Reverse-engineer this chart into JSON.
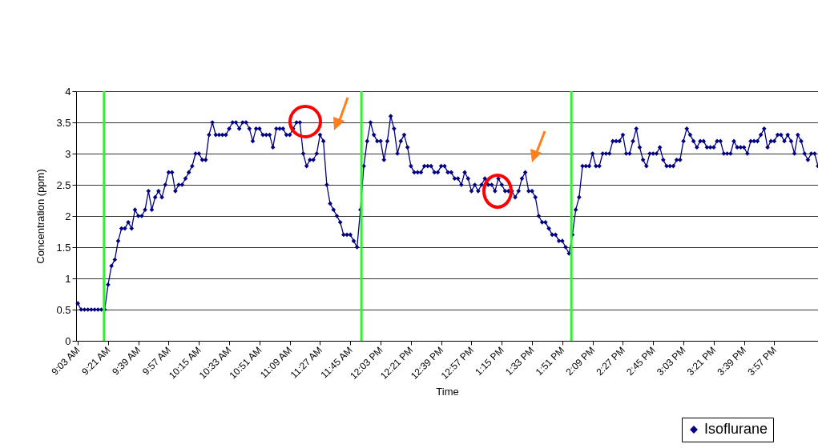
{
  "chart_data": {
    "type": "line",
    "xlabel": "Time",
    "ylabel": "Concentration (ppm)",
    "x": [
      9.05,
      9.0833,
      9.1167,
      9.15,
      9.1833,
      9.2167,
      9.25,
      9.2833,
      9.3167,
      9.35,
      9.3833,
      9.4167,
      9.45,
      9.4833,
      9.5167,
      9.55,
      9.5833,
      9.6167,
      9.65,
      9.6833,
      9.7167,
      9.75,
      9.7833,
      9.8167,
      9.85,
      9.8833,
      9.9167,
      9.95,
      9.9833,
      10.0167,
      10.05,
      10.0833,
      10.1167,
      10.15,
      10.1833,
      10.2167,
      10.25,
      10.2833,
      10.3167,
      10.35,
      10.3833,
      10.4167,
      10.45,
      10.4833,
      10.5167,
      10.55,
      10.5833,
      10.6167,
      10.65,
      10.6833,
      10.7167,
      10.75,
      10.7833,
      10.8167,
      10.85,
      10.8833,
      10.9167,
      10.95,
      10.9833,
      11.0167,
      11.05,
      11.0833,
      11.1167,
      11.15,
      11.1833,
      11.2167,
      11.25,
      11.2833,
      11.3167,
      11.35,
      11.3833,
      11.4167,
      11.45,
      11.4833,
      11.5167,
      11.55,
      11.5833,
      11.6167,
      11.65,
      11.6833,
      11.7167,
      11.75,
      11.7833,
      11.8167,
      11.85,
      11.8833,
      11.9167,
      11.95,
      11.9833,
      12.0167,
      12.05,
      12.0833,
      12.1167,
      12.15,
      12.1833,
      12.2167,
      12.25,
      12.2833,
      12.3167,
      12.35,
      12.3833,
      12.4167,
      12.45,
      12.4833,
      12.5167,
      12.55,
      12.5833,
      12.6167,
      12.65,
      12.6833,
      12.7167,
      12.75,
      12.7833,
      12.8167,
      12.85,
      12.8833,
      12.9167,
      12.95,
      12.9833,
      13.0167,
      13.05,
      13.0833,
      13.1167,
      13.15,
      13.1833,
      13.2167,
      13.25,
      13.2833,
      13.3167,
      13.35,
      13.3833,
      13.4167,
      13.45,
      13.4833,
      13.5167,
      13.55,
      13.5833,
      13.6167,
      13.65,
      13.6833,
      13.7167,
      13.75,
      13.7833,
      13.8167,
      13.85,
      13.8833,
      13.9167,
      13.95,
      13.9833,
      14.0167,
      14.05,
      14.0833,
      14.1167,
      14.15,
      14.1833,
      14.2167,
      14.25,
      14.2833,
      14.3167,
      14.35,
      14.3833,
      14.4167,
      14.45,
      14.4833,
      14.5167,
      14.55,
      14.5833,
      14.6167,
      14.65,
      14.6833,
      14.7167,
      14.75,
      14.7833,
      14.8167,
      14.85,
      14.8833,
      14.9167,
      14.95,
      14.9833,
      15.0167,
      15.05,
      15.0833,
      15.1167,
      15.15,
      15.1833,
      15.2167,
      15.25,
      15.2833,
      15.3167,
      15.35,
      15.3833,
      15.4167,
      15.45,
      15.4833,
      15.5167,
      15.55,
      15.5833,
      15.6167,
      15.65,
      15.6833,
      15.7167,
      15.75,
      15.7833,
      15.8167,
      15.85,
      15.8833,
      15.9167,
      15.95,
      15.9833,
      16.0167,
      16.05,
      16.0833,
      16.1167,
      16.15,
      16.1833,
      16.2167,
      16.25,
      16.2833,
      16.3167,
      16.35,
      16.3833
    ],
    "series": [
      {
        "name": "Isoflurane",
        "color": "#000080",
        "values": [
          0.6,
          0.5,
          0.5,
          0.5,
          0.5,
          0.5,
          0.5,
          0.5,
          0.5,
          0.9,
          1.2,
          1.3,
          1.6,
          1.8,
          1.8,
          1.9,
          1.8,
          2.1,
          2.0,
          2.0,
          2.1,
          2.4,
          2.1,
          2.3,
          2.4,
          2.3,
          2.5,
          2.7,
          2.7,
          2.4,
          2.5,
          2.5,
          2.6,
          2.7,
          2.8,
          3.0,
          3.0,
          2.9,
          2.9,
          3.3,
          3.5,
          3.3,
          3.3,
          3.3,
          3.3,
          3.4,
          3.5,
          3.5,
          3.4,
          3.5,
          3.5,
          3.4,
          3.2,
          3.4,
          3.4,
          3.3,
          3.3,
          3.3,
          3.1,
          3.4,
          3.4,
          3.4,
          3.3,
          3.3,
          3.4,
          3.5,
          3.5,
          3.0,
          2.8,
          2.9,
          2.9,
          3.0,
          3.3,
          3.2,
          2.5,
          2.2,
          2.1,
          2.0,
          1.9,
          1.7,
          1.7,
          1.7,
          1.6,
          1.5,
          2.1,
          2.8,
          3.2,
          3.5,
          3.3,
          3.2,
          3.2,
          2.9,
          3.2,
          3.6,
          3.4,
          3.0,
          3.2,
          3.3,
          3.1,
          2.8,
          2.7,
          2.7,
          2.7,
          2.8,
          2.8,
          2.8,
          2.7,
          2.7,
          2.8,
          2.8,
          2.7,
          2.7,
          2.6,
          2.6,
          2.5,
          2.7,
          2.6,
          2.4,
          2.5,
          2.4,
          2.5,
          2.6,
          2.5,
          2.5,
          2.4,
          2.6,
          2.5,
          2.4,
          2.4,
          2.4,
          2.3,
          2.4,
          2.6,
          2.7,
          2.4,
          2.4,
          2.3,
          2.0,
          1.9,
          1.9,
          1.8,
          1.7,
          1.7,
          1.6,
          1.6,
          1.5,
          1.4,
          1.7,
          2.1,
          2.3,
          2.8,
          2.8,
          2.8,
          3.0,
          2.8,
          2.8,
          3.0,
          3.0,
          3.0,
          3.2,
          3.2,
          3.2,
          3.3,
          3.0,
          3.0,
          3.2,
          3.4,
          3.1,
          2.9,
          2.8,
          3.0,
          3.0,
          3.0,
          3.1,
          2.9,
          2.8,
          2.8,
          2.8,
          2.9,
          2.9,
          3.2,
          3.4,
          3.3,
          3.2,
          3.1,
          3.2,
          3.2,
          3.1,
          3.1,
          3.1,
          3.2,
          3.2,
          3.0,
          3.0,
          3.0,
          3.2,
          3.1,
          3.1,
          3.1,
          3.0,
          3.2,
          3.2,
          3.2,
          3.3,
          3.4,
          3.1,
          3.2,
          3.2,
          3.3,
          3.3,
          3.2,
          3.3,
          3.2,
          3.0,
          3.3,
          3.2,
          3.0,
          2.9,
          3.0,
          3.0,
          2.8
        ]
      }
    ],
    "xlim": [
      9.0333,
      16.3833
    ],
    "xticks": [
      {
        "value": 9.05,
        "label": "9:03 AM"
      },
      {
        "value": 9.35,
        "label": "9:21 AM"
      },
      {
        "value": 9.65,
        "label": "9:39 AM"
      },
      {
        "value": 9.95,
        "label": "9:57 AM"
      },
      {
        "value": 10.25,
        "label": "10:15 AM"
      },
      {
        "value": 10.55,
        "label": "10:33 AM"
      },
      {
        "value": 10.85,
        "label": "10:51 AM"
      },
      {
        "value": 11.15,
        "label": "11:09 AM"
      },
      {
        "value": 11.45,
        "label": "11:27 AM"
      },
      {
        "value": 11.75,
        "label": "11:45 AM"
      },
      {
        "value": 12.05,
        "label": "12:03 PM"
      },
      {
        "value": 12.35,
        "label": "12:21 PM"
      },
      {
        "value": 12.65,
        "label": "12:39 PM"
      },
      {
        "value": 12.95,
        "label": "12:57 PM"
      },
      {
        "value": 13.25,
        "label": "1:15 PM"
      },
      {
        "value": 13.55,
        "label": "1:33 PM"
      },
      {
        "value": 13.85,
        "label": "1:51 PM"
      },
      {
        "value": 14.15,
        "label": "2:09 PM"
      },
      {
        "value": 14.45,
        "label": "2:27 PM"
      },
      {
        "value": 14.75,
        "label": "2:45 PM"
      },
      {
        "value": 15.05,
        "label": "3:03 PM"
      },
      {
        "value": 15.35,
        "label": "3:21 PM"
      },
      {
        "value": 15.65,
        "label": "3:39 PM"
      },
      {
        "value": 15.95,
        "label": "3:57 PM"
      }
    ],
    "ylim": [
      0,
      4
    ],
    "yticks": [
      0,
      0.5,
      1,
      1.5,
      2,
      2.5,
      3,
      3.5,
      4
    ],
    "grid": "y",
    "legend": "bottom right",
    "marker": "diamond",
    "line_style": "solid",
    "ref_lines": [
      {
        "axis": "x",
        "value": 9.31,
        "color": "#33ee33"
      },
      {
        "axis": "x",
        "value": 11.86,
        "color": "#33ee33"
      },
      {
        "axis": "x",
        "value": 13.94,
        "color": "#33ee33"
      }
    ]
  }
}
